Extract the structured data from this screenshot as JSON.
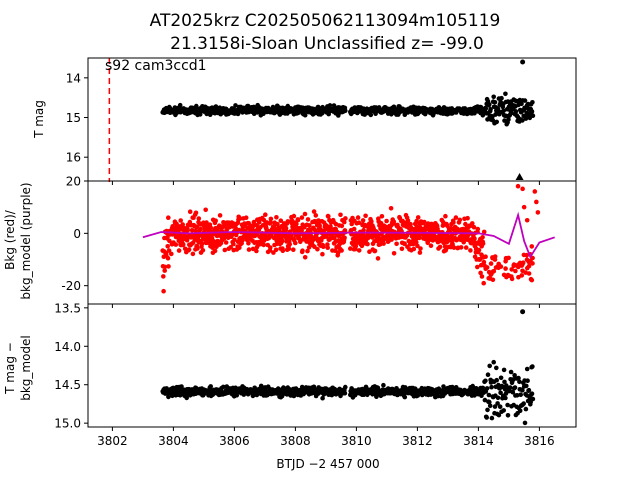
{
  "title_line1": "AT2025krz  C202505062113094m105119",
  "title_line2": "21.3158i-Sloan Unclassified z= -99.0",
  "annotation": "s92 cam3ccd1",
  "xlabel": "BTJD −2 457 000",
  "colors": {
    "points": "#000000",
    "bkg": "#ff0000",
    "model": "#bf00bf",
    "marker": "#ff0000"
  },
  "chart_data": [
    {
      "type": "scatter",
      "name": "T mag",
      "ylabel": "T mag",
      "xlim": [
        3801.2,
        3817.2
      ],
      "ylim": [
        16.6,
        13.5
      ],
      "yticks": [
        14,
        15,
        16
      ],
      "xticks": [
        3802,
        3804,
        3806,
        3808,
        3810,
        3812,
        3814,
        3816
      ],
      "epoch_line_x": 3801.9,
      "segments": [
        {
          "x_start": 3803.65,
          "x_end": 3809.65,
          "y_level": 14.82,
          "spread": 0.05
        },
        {
          "x_start": 3809.8,
          "x_end": 3814.2,
          "y_level": 14.82,
          "spread": 0.05
        },
        {
          "x_start": 3814.2,
          "x_end": 3815.8,
          "y_level": 14.82,
          "spread": 0.18
        }
      ],
      "outliers": [
        [
          3815.45,
          13.6
        ]
      ],
      "triangle_marker": {
        "x": 3815.35,
        "y": 16.5
      }
    },
    {
      "type": "scatter",
      "name": "background",
      "ylabel_line1": "Bkg (red)/",
      "ylabel_line2": "bkg_model (purple)",
      "xlim": [
        3801.2,
        3817.2
      ],
      "ylim": [
        -27,
        20
      ],
      "yticks": [
        20,
        0,
        -20
      ],
      "segments": [
        {
          "x_start": 3803.65,
          "x_end": 3809.65
        },
        {
          "x_start": 3809.8,
          "x_end": 3814.2
        }
      ],
      "model_curve": [
        [
          3803.0,
          -1.5
        ],
        [
          3803.6,
          0.5
        ],
        [
          3804.5,
          0
        ],
        [
          3806,
          0.5
        ],
        [
          3808,
          0
        ],
        [
          3810,
          0.3
        ],
        [
          3812,
          0.2
        ],
        [
          3814,
          0
        ],
        [
          3814.5,
          -1
        ],
        [
          3815.0,
          -4
        ],
        [
          3815.3,
          7
        ],
        [
          3815.5,
          -3
        ],
        [
          3815.7,
          -9
        ],
        [
          3816.0,
          -3.5
        ],
        [
          3816.5,
          -1.5
        ]
      ],
      "tail_points": [
        [
          3815.3,
          18
        ],
        [
          3815.45,
          17
        ],
        [
          3815.5,
          10
        ],
        [
          3815.6,
          5
        ],
        [
          3815.7,
          -8
        ],
        [
          3815.85,
          16
        ],
        [
          3815.9,
          12
        ],
        [
          3815.95,
          8
        ],
        [
          3815.55,
          -15
        ],
        [
          3815.75,
          -5
        ]
      ]
    },
    {
      "type": "scatter",
      "name": "T mag minus bkg_model",
      "ylabel_line1": "T mag −",
      "ylabel_line2": "bkg_model",
      "xlim": [
        3801.2,
        3817.2
      ],
      "ylim": [
        15.05,
        13.45
      ],
      "yticks": [
        13.5,
        14.0,
        14.5,
        15.0
      ],
      "segments": [
        {
          "x_start": 3803.65,
          "x_end": 3809.65,
          "y_level": 14.59,
          "spread": 0.03
        },
        {
          "x_start": 3809.8,
          "x_end": 3814.2,
          "y_level": 14.59,
          "spread": 0.03
        },
        {
          "x_start": 3814.2,
          "x_end": 3815.8,
          "y_level": 14.6,
          "spread": 0.15
        }
      ],
      "outliers": [
        [
          3815.45,
          13.55
        ]
      ]
    }
  ]
}
